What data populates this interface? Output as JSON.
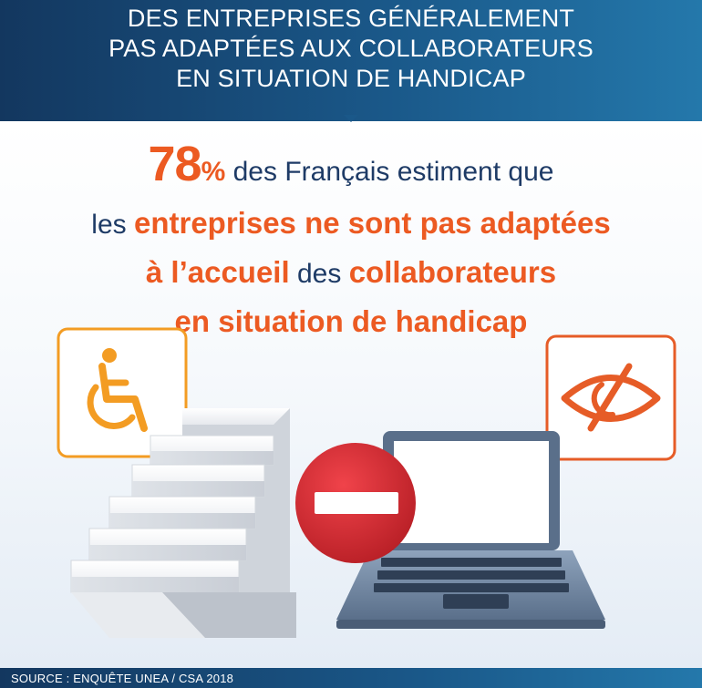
{
  "banner": {
    "line1": "DES ENTREPRISES GÉNÉRALEMENT",
    "line2": "PAS ADAPTÉES AUX COLLABORATEURS",
    "line3": "EN SITUATION DE HANDICAP"
  },
  "headline": {
    "stat_number": "78",
    "stat_percent": "%",
    "line1_rest": " des Français estiment que",
    "line2_lead": "les ",
    "line2_highlight": "entreprises ne sont pas adaptées",
    "line3_highlight1": "à l’accueil",
    "line3_mid": " des ",
    "line3_highlight2": "collaborateurs",
    "line4_highlight": "en situation de handicap"
  },
  "icons": {
    "wheelchair": "wheelchair-icon",
    "eye": "eye-slash-icon",
    "stairs": "stairs-illustration",
    "no_entry": "no-entry-sign",
    "laptop": "laptop-illustration"
  },
  "colors": {
    "navy": "#1e3b66",
    "orange": "#ec5a22",
    "banner_dark": "#13375f",
    "banner_light": "#2478ab",
    "stop_red": "#d8262d"
  },
  "footer": {
    "source": "SOURCE : ENQUÊTE UNEA / CSA 2018"
  }
}
